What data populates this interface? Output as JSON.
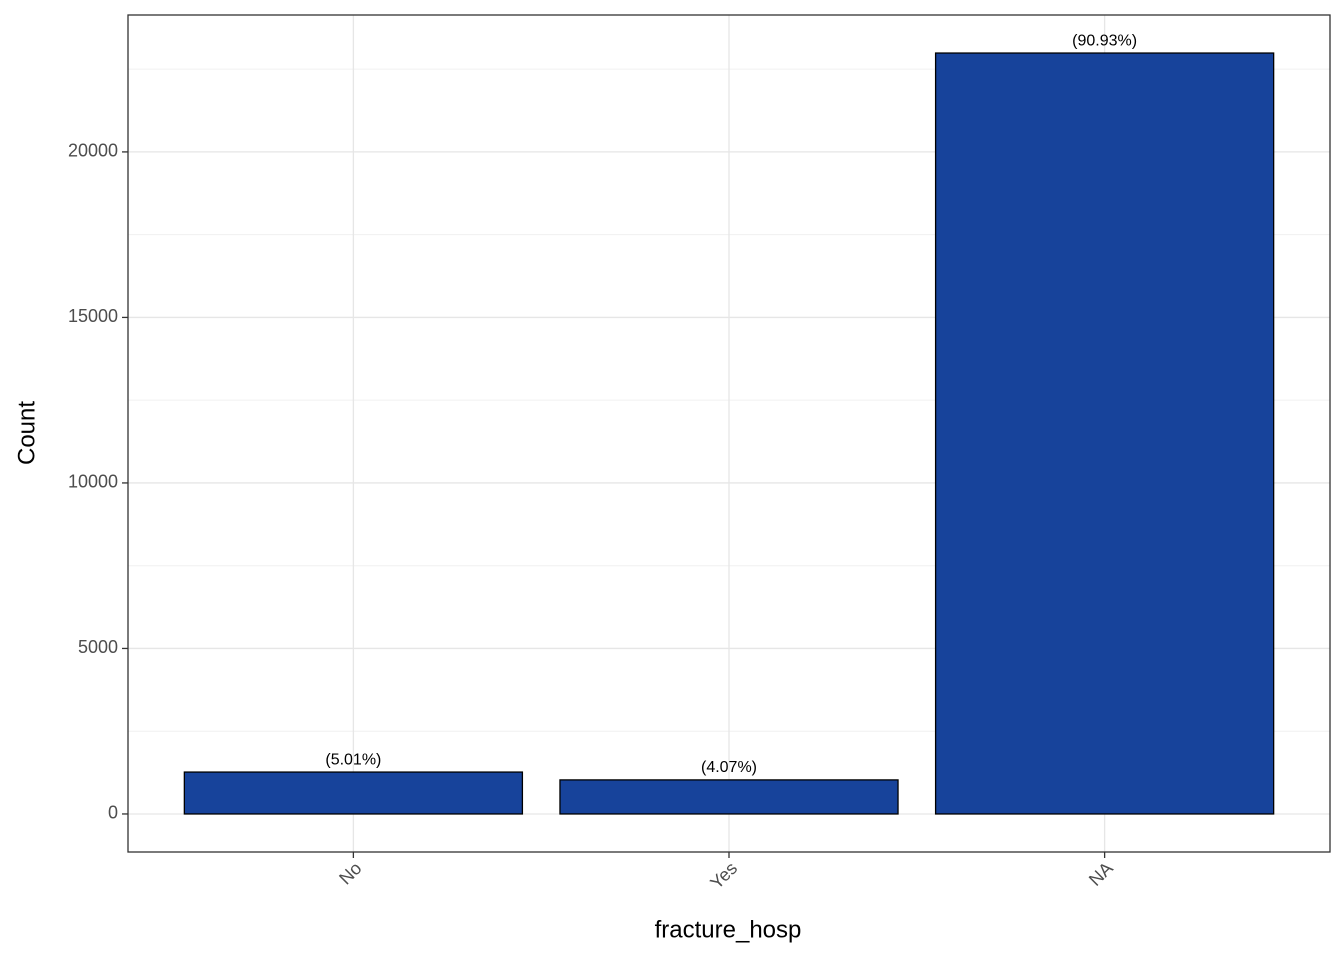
{
  "chart_data": {
    "type": "bar",
    "x_label": "fracture_hosp",
    "y_label": "Count",
    "categories": [
      "No",
      "Yes",
      "NA"
    ],
    "values": [
      1266,
      1029,
      22987
    ],
    "annotations": [
      "(5.01%)",
      "(4.07%)",
      "(90.93%)"
    ],
    "color": "#17439b",
    "ylim": [
      -1149,
      24136
    ],
    "yticks": [
      0,
      5000,
      10000,
      15000,
      20000
    ],
    "yticks_minor": [
      2500,
      7500,
      12500,
      17500,
      22500
    ],
    "grid": true
  }
}
